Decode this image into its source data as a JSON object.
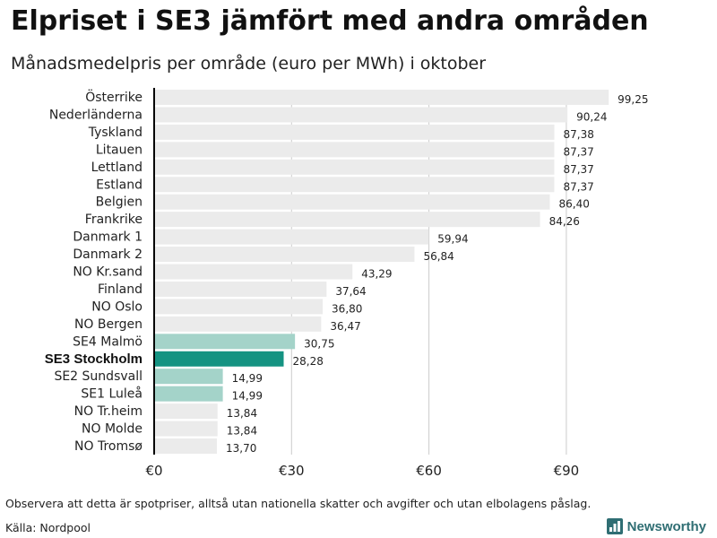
{
  "chart_data": {
    "type": "bar",
    "orientation": "horizontal",
    "title": "Elpriset i SE3 jämfört med andra områden",
    "subtitle": "Månadsmedelpris per område (euro per MWh) i oktober",
    "xlabel": "",
    "ylabel": "",
    "xlim": [
      0,
      100
    ],
    "x_ticks": [
      0,
      30,
      60,
      90
    ],
    "x_tick_labels": [
      "€0",
      "€30",
      "€60",
      "€90"
    ],
    "grid": true,
    "categories": [
      "Österrike",
      "Nederländerna",
      "Tyskland",
      "Litauen",
      "Lettland",
      "Estland",
      "Belgien",
      "Frankrike",
      "Danmark  1",
      "Danmark  2",
      "NO Kr.sand",
      "Finland",
      "NO Oslo",
      "NO Bergen",
      "SE4  Malmö",
      "SE3 Stockholm",
      "SE2  Sundsvall",
      "SE1  Luleå",
      "NO Tr.heim",
      "NO Molde",
      "NO Tromsø"
    ],
    "values": [
      99.25,
      90.24,
      87.38,
      87.37,
      87.37,
      87.37,
      86.4,
      84.26,
      59.94,
      56.84,
      43.29,
      37.64,
      36.8,
      36.47,
      30.75,
      28.28,
      14.99,
      14.99,
      13.84,
      13.84,
      13.7
    ],
    "value_labels": [
      "99,25",
      "90,24",
      "87,38",
      "87,37",
      "87,37",
      "87,37",
      "86,40",
      "84,26",
      "59,94",
      "56,84",
      "43,29",
      "37,64",
      "36,80",
      "36,47",
      "30,75",
      "28,28",
      "14,99",
      "14,99",
      "13,84",
      "13,84",
      "13,70"
    ],
    "highlight": "SE3 Stockholm",
    "swedish_areas": [
      "SE4  Malmö",
      "SE3 Stockholm",
      "SE2  Sundsvall",
      "SE1  Luleå"
    ],
    "colors": {
      "default": "#ebebeb",
      "swedish": "#a4d3c9",
      "highlight": "#159382",
      "grid": "#cccccc",
      "axis": "#000000"
    }
  },
  "footer": {
    "note": "Observera att detta är spotpriser, alltså utan nationella skatter och avgifter och utan elbolagens påslag.",
    "source": "Källa: Nordpool",
    "brand": "Newsworthy"
  }
}
